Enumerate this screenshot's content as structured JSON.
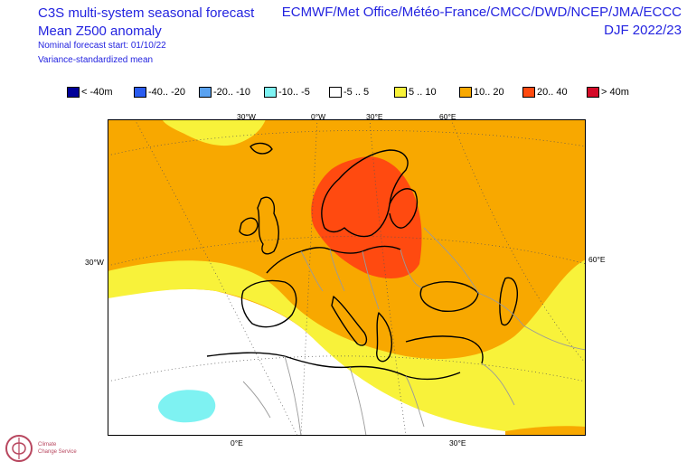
{
  "header": {
    "title_line1": "C3S multi-system seasonal forecast",
    "title_line2": "Mean Z500 anomaly",
    "nominal_start": "Nominal forecast start: 01/10/22",
    "variance_note": "Variance-standardized mean",
    "centres": "ECMWF/Met Office/Météo-France/CMCC/DWD/NCEP/JMA/ECCC",
    "season": "DJF 2022/23"
  },
  "legend": [
    {
      "label": "< -40m",
      "color": "#000098"
    },
    {
      "label": "-40.. -20",
      "color": "#2a5cf0"
    },
    {
      "label": "-20.. -10",
      "color": "#5aa2f0"
    },
    {
      "label": "-10.. -5",
      "color": "#7ef2f2"
    },
    {
      "label": "-5 .. 5",
      "color": "#ffffff"
    },
    {
      "label": "5 .. 10",
      "color": "#f8f23a"
    },
    {
      "label": "10.. 20",
      "color": "#f8a800"
    },
    {
      "label": "20.. 40",
      "color": "#ff4a10"
    },
    {
      "label": "> 40m",
      "color": "#d40a28"
    }
  ],
  "axes": {
    "top": [
      "30°W",
      "0°W",
      "30°E",
      "60°E"
    ],
    "left": "30°W",
    "right": "60°E",
    "bottom": [
      "0°E",
      "30°E"
    ]
  },
  "colors": {
    "orange": "#f8a800",
    "yellow": "#f8f23a",
    "red": "#ff4a10",
    "cyan": "#7ef2f2",
    "white": "#ffffff",
    "title": "#2323e0"
  },
  "logo": {
    "line1": "Climate",
    "line2": "Change Service"
  }
}
